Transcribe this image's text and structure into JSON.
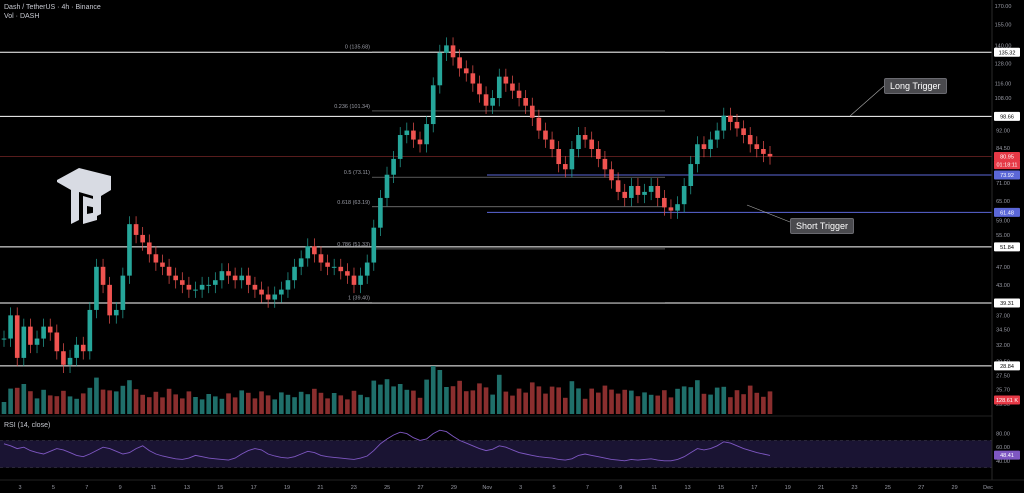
{
  "header": {
    "symbol_line": "Dash / TetherUS · 4h · Binance",
    "volume_line": "Vol · DASH"
  },
  "rsi_label": "RSI (14, close)",
  "colors": {
    "background": "#000000",
    "bull": "#26a69a",
    "bear": "#ef5350",
    "level_line": "#ffffff",
    "fib_line": "#8a8a8a",
    "price_tag": "#e63946",
    "blue_tag": "#5b67d8",
    "rsi_line": "#7e57c2"
  },
  "annotations": {
    "long_trigger": "Long Trigger",
    "short_trigger": "Short Trigger"
  },
  "chart_data": {
    "type": "candlestick",
    "title": "Dash / TetherUS · 4h · Binance",
    "y_axis_ticks": [
      "170.00",
      "155.00",
      "140.00",
      "128.00",
      "116.00",
      "108.00",
      "98.66",
      "92.00",
      "84.50",
      "77.50",
      "71.00",
      "65.00",
      "59.00",
      "55.00",
      "51.84",
      "47.00",
      "43.00",
      "39.31",
      "37.00",
      "34.50",
      "32.00",
      "29.50",
      "27.50",
      "25.70",
      "23.90"
    ],
    "x_axis_ticks": [
      "3",
      "5",
      "7",
      "9",
      "11",
      "13",
      "15",
      "17",
      "19",
      "21",
      "23",
      "25",
      "27",
      "29",
      "Nov",
      "3",
      "5",
      "7",
      "9",
      "11",
      "13",
      "15",
      "17",
      "19",
      "21",
      "23",
      "25",
      "27",
      "29",
      "Dec"
    ],
    "horizontal_levels": [
      135.32,
      98.66,
      51.84,
      39.31,
      28.84
    ],
    "blue_levels": [
      73.92,
      61.48
    ],
    "price_tags": [
      {
        "label": "135.32",
        "kind": "level"
      },
      {
        "label": "98.66",
        "kind": "level"
      },
      {
        "label": "80.95",
        "kind": "current"
      },
      {
        "label": "01:18:11",
        "kind": "countdown"
      },
      {
        "label": "73.92",
        "kind": "blue"
      },
      {
        "label": "61.48",
        "kind": "blue"
      },
      {
        "label": "51.84",
        "kind": "level"
      },
      {
        "label": "39.31",
        "kind": "level"
      },
      {
        "label": "28.84",
        "kind": "level"
      },
      {
        "label": "128.61 K",
        "kind": "volume"
      }
    ],
    "fibonacci": [
      {
        "label": "0 (135.68)",
        "price": 135.68
      },
      {
        "label": "0.236 (101.34)",
        "price": 101.34
      },
      {
        "label": "0.5 (73.11)",
        "price": 73.11
      },
      {
        "label": "0.618 (63.19)",
        "price": 63.19
      },
      {
        "label": "0.786 (51.33)",
        "price": 51.33
      },
      {
        "label": "1 (39.40)",
        "price": 39.4
      }
    ],
    "price_path": [
      [
        0,
        33
      ],
      [
        1,
        37
      ],
      [
        2,
        30
      ],
      [
        3,
        35
      ],
      [
        4,
        32
      ],
      [
        5,
        33
      ],
      [
        6,
        35
      ],
      [
        7,
        34
      ],
      [
        8,
        31
      ],
      [
        9,
        29
      ],
      [
        10,
        30
      ],
      [
        11,
        32
      ],
      [
        12,
        31
      ],
      [
        13,
        38
      ],
      [
        14,
        47
      ],
      [
        15,
        43
      ],
      [
        16,
        37
      ],
      [
        17,
        38
      ],
      [
        18,
        45
      ],
      [
        19,
        58
      ],
      [
        20,
        55
      ],
      [
        21,
        53
      ],
      [
        22,
        50
      ],
      [
        23,
        48
      ],
      [
        24,
        47
      ],
      [
        25,
        45
      ],
      [
        26,
        44
      ],
      [
        27,
        43
      ],
      [
        28,
        42
      ],
      [
        29,
        42
      ],
      [
        30,
        43
      ],
      [
        31,
        43
      ],
      [
        32,
        44
      ],
      [
        33,
        46
      ],
      [
        34,
        45
      ],
      [
        35,
        44
      ],
      [
        36,
        45
      ],
      [
        37,
        43
      ],
      [
        38,
        42
      ],
      [
        39,
        41
      ],
      [
        40,
        40
      ],
      [
        41,
        41
      ],
      [
        42,
        42
      ],
      [
        43,
        44
      ],
      [
        44,
        47
      ],
      [
        45,
        49
      ],
      [
        46,
        52
      ],
      [
        47,
        50
      ],
      [
        48,
        48
      ],
      [
        49,
        47
      ],
      [
        50,
        47
      ],
      [
        51,
        46
      ],
      [
        52,
        45
      ],
      [
        53,
        43
      ],
      [
        54,
        45
      ],
      [
        55,
        48
      ],
      [
        56,
        57
      ],
      [
        57,
        66
      ],
      [
        58,
        74
      ],
      [
        59,
        80
      ],
      [
        60,
        90
      ],
      [
        61,
        92
      ],
      [
        62,
        88
      ],
      [
        63,
        86
      ],
      [
        64,
        95
      ],
      [
        65,
        115
      ],
      [
        66,
        135
      ],
      [
        67,
        140
      ],
      [
        68,
        132
      ],
      [
        69,
        125
      ],
      [
        70,
        122
      ],
      [
        71,
        116
      ],
      [
        72,
        110
      ],
      [
        73,
        104
      ],
      [
        74,
        108
      ],
      [
        75,
        120
      ],
      [
        76,
        116
      ],
      [
        77,
        112
      ],
      [
        78,
        108
      ],
      [
        79,
        104
      ],
      [
        80,
        98
      ],
      [
        81,
        92
      ],
      [
        82,
        88
      ],
      [
        83,
        84
      ],
      [
        84,
        78
      ],
      [
        85,
        76
      ],
      [
        86,
        84
      ],
      [
        87,
        90
      ],
      [
        88,
        88
      ],
      [
        89,
        84
      ],
      [
        90,
        80
      ],
      [
        91,
        76
      ],
      [
        92,
        72
      ],
      [
        93,
        68
      ],
      [
        94,
        66
      ],
      [
        95,
        70
      ],
      [
        96,
        67
      ],
      [
        97,
        68
      ],
      [
        98,
        70
      ],
      [
        99,
        66
      ],
      [
        100,
        63
      ],
      [
        101,
        62
      ],
      [
        102,
        64
      ],
      [
        103,
        70
      ],
      [
        104,
        78
      ],
      [
        105,
        86
      ],
      [
        106,
        84
      ],
      [
        107,
        88
      ],
      [
        108,
        92
      ],
      [
        109,
        99
      ],
      [
        110,
        96
      ],
      [
        111,
        93
      ],
      [
        112,
        90
      ],
      [
        113,
        86
      ],
      [
        114,
        84
      ],
      [
        115,
        82
      ],
      [
        116,
        81
      ]
    ],
    "rsi_path": [
      65,
      62,
      58,
      60,
      55,
      52,
      50,
      54,
      58,
      56,
      52,
      48,
      46,
      50,
      55,
      60,
      58,
      54,
      50,
      52,
      58,
      62,
      55,
      50,
      47,
      45,
      43,
      42,
      44,
      48,
      46,
      44,
      43,
      42,
      41,
      44,
      50,
      55,
      58,
      56,
      50,
      47,
      45,
      44,
      46,
      50,
      54,
      52,
      48,
      46,
      45,
      44,
      43,
      42,
      44,
      47,
      55,
      65,
      72,
      78,
      82,
      80,
      74,
      70,
      72,
      80,
      85,
      83,
      76,
      70,
      66,
      62,
      58,
      55,
      57,
      62,
      60,
      56,
      52,
      50,
      48,
      46,
      45,
      44,
      42,
      41,
      43,
      48,
      50,
      48,
      46,
      44,
      42,
      41,
      40,
      42,
      41,
      42,
      43,
      41,
      40,
      40,
      42,
      46,
      52,
      58,
      56,
      58,
      62,
      68,
      66,
      62,
      58,
      55,
      52,
      50,
      48
    ],
    "rsi_levels": [
      70,
      50,
      30
    ],
    "rsi_ticks": [
      "80.00",
      "60.00",
      "40.00"
    ],
    "rsi_current": "48.41"
  }
}
